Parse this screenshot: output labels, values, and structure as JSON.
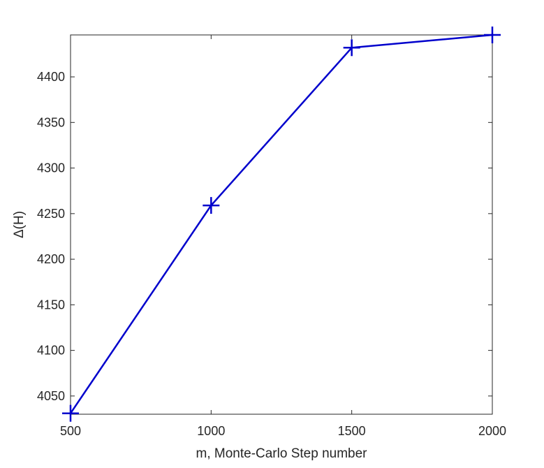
{
  "chart_data": {
    "type": "line",
    "title": "",
    "xlabel": "m, Monte-Carlo Step number",
    "ylabel": "Δ(H)",
    "xlim": [
      500,
      2000
    ],
    "ylim": [
      4030,
      4446
    ],
    "xticks": [
      500,
      1000,
      1500,
      2000
    ],
    "yticks": [
      4050,
      4100,
      4150,
      4200,
      4250,
      4300,
      4350,
      4400
    ],
    "grid": false,
    "legend": "none",
    "series": [
      {
        "x": [
          500,
          1000,
          1500,
          2000
        ],
        "y": [
          4031,
          4259,
          4432,
          4446
        ],
        "color": "#0000cc",
        "marker": "plus"
      }
    ]
  }
}
